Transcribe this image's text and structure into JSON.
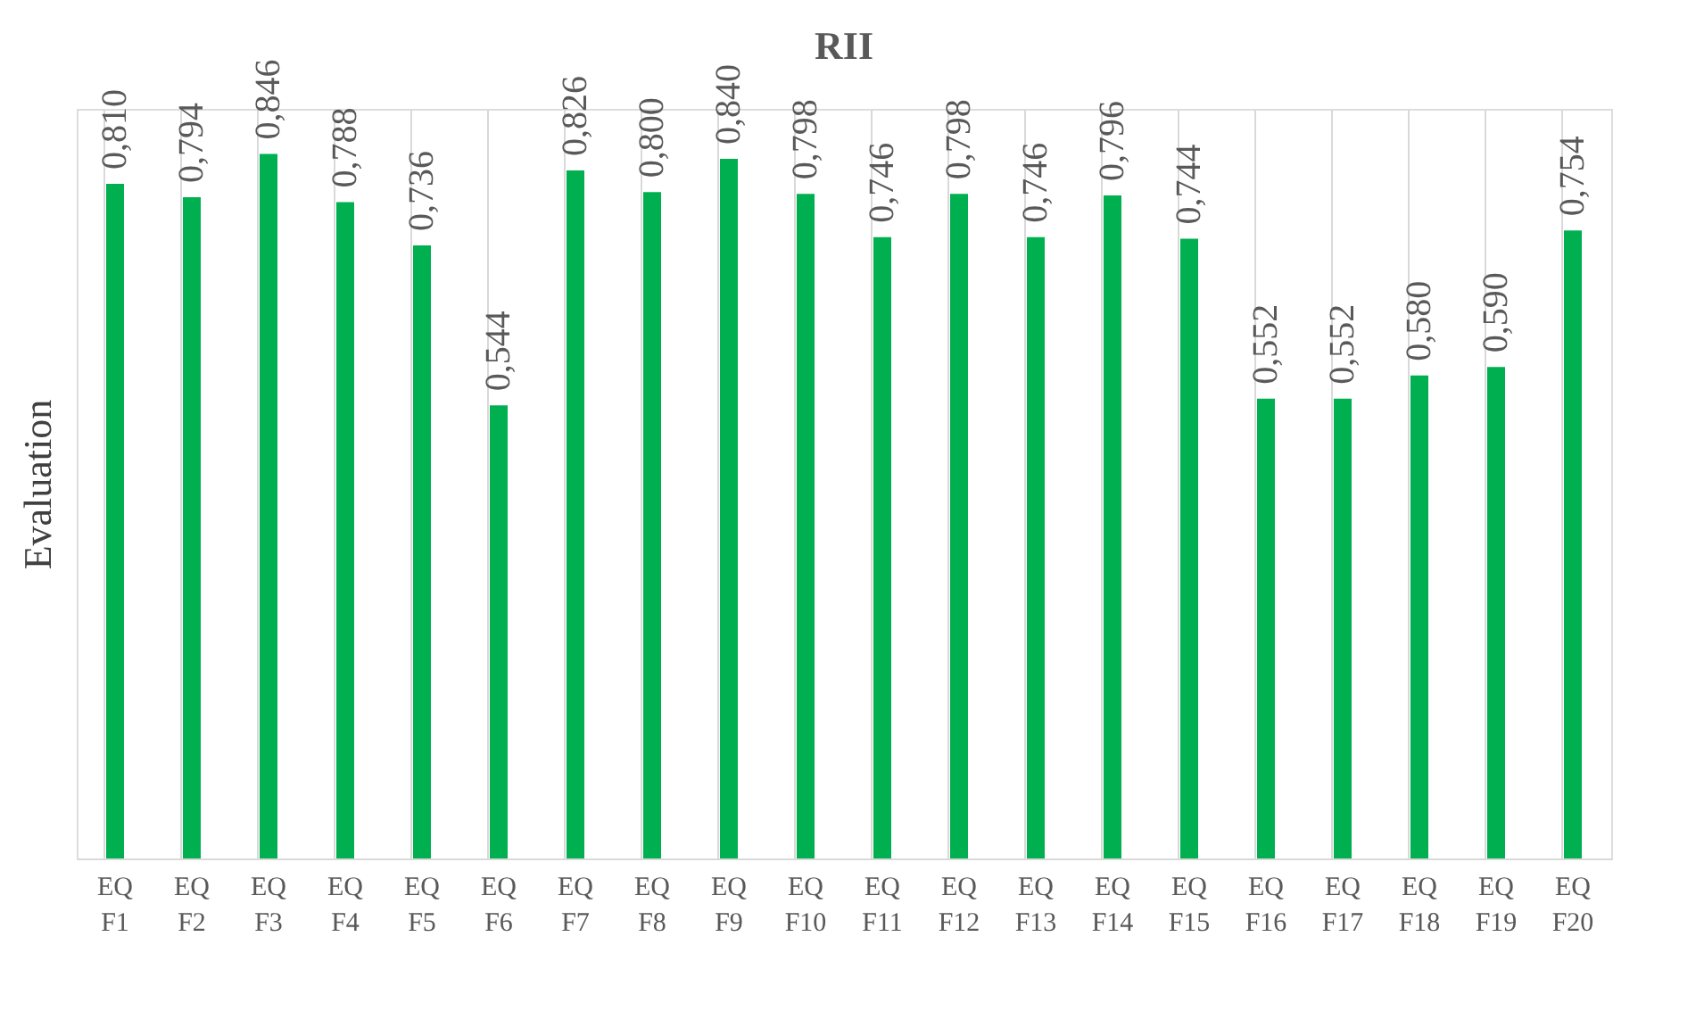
{
  "chart_data": {
    "type": "bar",
    "title": "RII",
    "ylabel": "Evaluation",
    "categories": [
      "EQ F1",
      "EQ F2",
      "EQ F3",
      "EQ F4",
      "EQ F5",
      "EQ F6",
      "EQ F7",
      "EQ F8",
      "EQ F9",
      "EQ F10",
      "EQ F11",
      "EQ F12",
      "EQ F13",
      "EQ F14",
      "EQ F15",
      "EQ F16",
      "EQ F17",
      "EQ F18",
      "EQ F19",
      "EQ F20"
    ],
    "values": [
      0.81,
      0.794,
      0.846,
      0.788,
      0.736,
      0.544,
      0.826,
      0.8,
      0.84,
      0.798,
      0.746,
      0.798,
      0.746,
      0.796,
      0.744,
      0.552,
      0.552,
      0.58,
      0.59,
      0.754
    ],
    "value_labels": [
      "0,810",
      "0,794",
      "0,846",
      "0,788",
      "0,736",
      "0,544",
      "0,826",
      "0,800",
      "0,840",
      "0,798",
      "0,746",
      "0,798",
      "0,746",
      "0,796",
      "0,744",
      "0,552",
      "0,552",
      "0,580",
      "0,590",
      "0,754"
    ],
    "color": "#00b050",
    "grid": "x",
    "tick_labels": "x"
  }
}
